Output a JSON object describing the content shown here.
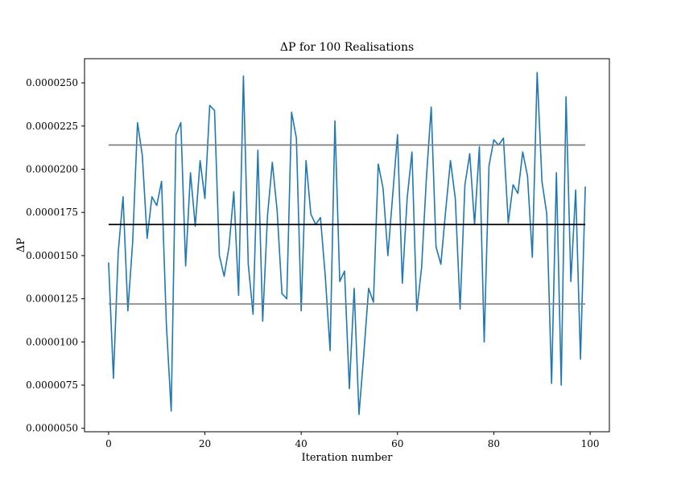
{
  "chart_data": {
    "type": "line",
    "title": "ΔP for 100 Realisations",
    "xlabel": "Iteration number",
    "ylabel": "ΔP",
    "xlim": [
      -5,
      104
    ],
    "ylim": [
      4.8e-06,
      2.64e-05
    ],
    "x_ticks": [
      0,
      20,
      40,
      60,
      80,
      100
    ],
    "y_ticks": [
      5e-06,
      7.5e-06,
      1e-05,
      1.25e-05,
      1.5e-05,
      1.75e-05,
      2e-05,
      2.25e-05,
      2.5e-05
    ],
    "y_tick_labels": [
      "0.0000050",
      "0.0000075",
      "0.0000100",
      "0.0000125",
      "0.0000150",
      "0.0000175",
      "0.0000200",
      "0.0000225",
      "0.0000250"
    ],
    "grid": false,
    "series": [
      {
        "color": "#1f77b4",
        "x": [
          0,
          1,
          2,
          3,
          4,
          5,
          6,
          7,
          8,
          9,
          10,
          11,
          12,
          13,
          14,
          15,
          16,
          17,
          18,
          19,
          20,
          21,
          22,
          23,
          24,
          25,
          26,
          27,
          28,
          29,
          30,
          31,
          32,
          33,
          34,
          35,
          36,
          37,
          38,
          39,
          40,
          41,
          42,
          43,
          44,
          45,
          46,
          47,
          48,
          49,
          50,
          51,
          52,
          53,
          54,
          55,
          56,
          57,
          58,
          59,
          60,
          61,
          62,
          63,
          64,
          65,
          66,
          67,
          68,
          69,
          70,
          71,
          72,
          73,
          74,
          75,
          76,
          77,
          78,
          79,
          80,
          81,
          82,
          83,
          84,
          85,
          86,
          87,
          88,
          89,
          90,
          91,
          92,
          93,
          94,
          95,
          96,
          97,
          98,
          99
        ],
        "values": [
          1.46e-05,
          7.9e-06,
          1.52e-05,
          1.84e-05,
          1.18e-05,
          1.58e-05,
          2.27e-05,
          2.08e-05,
          1.6e-05,
          1.84e-05,
          1.79e-05,
          1.93e-05,
          1.1e-05,
          6e-06,
          2.2e-05,
          2.27e-05,
          1.44e-05,
          1.98e-05,
          1.67e-05,
          2.05e-05,
          1.83e-05,
          2.37e-05,
          2.34e-05,
          1.5e-05,
          1.38e-05,
          1.55e-05,
          1.87e-05,
          1.27e-05,
          2.54e-05,
          1.45e-05,
          1.16e-05,
          2.11e-05,
          1.12e-05,
          1.73e-05,
          2.04e-05,
          1.76e-05,
          1.28e-05,
          1.25e-05,
          2.33e-05,
          2.18e-05,
          1.18e-05,
          2.05e-05,
          1.74e-05,
          1.68e-05,
          1.72e-05,
          1.38e-05,
          9.5e-06,
          2.28e-05,
          1.35e-05,
          1.41e-05,
          7.3e-06,
          1.31e-05,
          5.8e-06,
          9.3e-06,
          1.31e-05,
          1.23e-05,
          2.03e-05,
          1.89e-05,
          1.5e-05,
          1.85e-05,
          2.2e-05,
          1.34e-05,
          1.83e-05,
          2.1e-05,
          1.18e-05,
          1.43e-05,
          1.95e-05,
          2.36e-05,
          1.55e-05,
          1.45e-05,
          1.76e-05,
          2.05e-05,
          1.83e-05,
          1.19e-05,
          1.91e-05,
          2.09e-05,
          1.68e-05,
          2.13e-05,
          1e-05,
          2.02e-05,
          2.17e-05,
          2.14e-05,
          2.18e-05,
          1.69e-05,
          1.91e-05,
          1.86e-05,
          2.1e-05,
          1.96e-05,
          1.49e-05,
          2.56e-05,
          1.93e-05,
          1.74e-05,
          7.6e-06,
          1.98e-05,
          7.5e-06,
          2.42e-05,
          1.35e-05,
          1.88e-05,
          9e-06,
          1.9e-05
        ]
      },
      {
        "color": "#000000",
        "x": [
          0,
          99
        ],
        "values": [
          1.68e-05,
          1.68e-05
        ]
      },
      {
        "color": "#808080",
        "x": [
          0,
          99
        ],
        "values": [
          2.14e-05,
          2.14e-05
        ]
      },
      {
        "color": "#808080",
        "x": [
          0,
          99
        ],
        "values": [
          1.22e-05,
          1.22e-05
        ]
      }
    ]
  }
}
